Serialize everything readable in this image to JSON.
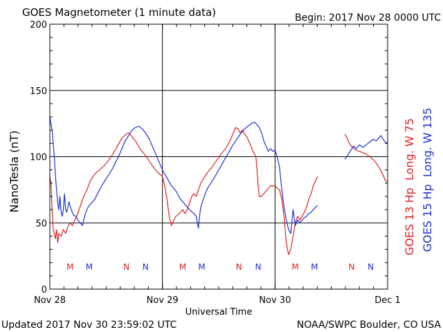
{
  "header": {
    "title": "GOES Magnetometer (1 minute data)",
    "begin": "Begin:  2017 Nov 28 0000 UTC"
  },
  "footer": {
    "updated": "Updated 2017 Nov 30 23:59:02 UTC",
    "credit": "NOAA/SWPC Boulder, CO USA"
  },
  "colors": {
    "goes13": "#e02020",
    "goes15": "#1a2fd6",
    "grid": "#000000"
  },
  "chart_data": {
    "type": "line",
    "ylabel": "NanoTesla (nT)",
    "xlabel": "Universal Time",
    "ylim": [
      0,
      200
    ],
    "yticks": [
      0,
      50,
      100,
      150,
      200
    ],
    "xlim_days": [
      0,
      3
    ],
    "xticks": [
      {
        "day": 0,
        "label": "Nov 28"
      },
      {
        "day": 1,
        "label": "Nov 29"
      },
      {
        "day": 2,
        "label": "Nov 30"
      },
      {
        "day": 3,
        "label": "Dec 1"
      }
    ],
    "grid": true,
    "legend_position": "right-vertical",
    "series": [
      {
        "name": "GOES 13 Hp  Long. W 75",
        "color": "#e02020",
        "segments": [
          [
            [
              0.0,
              85
            ],
            [
              0.01,
              80
            ],
            [
              0.02,
              60
            ],
            [
              0.03,
              45
            ],
            [
              0.04,
              42
            ],
            [
              0.05,
              38
            ],
            [
              0.06,
              45
            ],
            [
              0.07,
              35
            ],
            [
              0.08,
              42
            ],
            [
              0.1,
              40
            ],
            [
              0.12,
              45
            ],
            [
              0.14,
              42
            ],
            [
              0.16,
              47
            ],
            [
              0.18,
              50
            ],
            [
              0.2,
              48
            ],
            [
              0.22,
              52
            ],
            [
              0.24,
              55
            ],
            [
              0.26,
              60
            ],
            [
              0.28,
              65
            ],
            [
              0.3,
              70
            ],
            [
              0.33,
              75
            ],
            [
              0.36,
              82
            ],
            [
              0.4,
              87
            ],
            [
              0.44,
              90
            ],
            [
              0.48,
              93
            ],
            [
              0.52,
              97
            ],
            [
              0.56,
              102
            ],
            [
              0.6,
              108
            ],
            [
              0.64,
              114
            ],
            [
              0.68,
              117
            ],
            [
              0.7,
              118
            ],
            [
              0.72,
              116
            ],
            [
              0.74,
              114
            ],
            [
              0.76,
              112
            ],
            [
              0.78,
              109
            ],
            [
              0.8,
              106
            ],
            [
              0.84,
              102
            ],
            [
              0.88,
              97
            ],
            [
              0.92,
              92
            ],
            [
              0.96,
              88
            ],
            [
              1.0,
              85
            ],
            [
              1.02,
              78
            ],
            [
              1.04,
              68
            ],
            [
              1.06,
              55
            ],
            [
              1.08,
              48
            ],
            [
              1.1,
              52
            ],
            [
              1.12,
              55
            ],
            [
              1.15,
              57
            ],
            [
              1.18,
              60
            ],
            [
              1.2,
              57
            ],
            [
              1.22,
              60
            ],
            [
              1.24,
              65
            ],
            [
              1.26,
              70
            ],
            [
              1.28,
              72
            ],
            [
              1.3,
              70
            ],
            [
              1.32,
              75
            ],
            [
              1.34,
              80
            ],
            [
              1.37,
              84
            ],
            [
              1.4,
              88
            ],
            [
              1.44,
              92
            ],
            [
              1.48,
              97
            ],
            [
              1.52,
              102
            ],
            [
              1.56,
              106
            ],
            [
              1.6,
              112
            ],
            [
              1.63,
              118
            ],
            [
              1.65,
              122
            ],
            [
              1.67,
              121
            ],
            [
              1.69,
              118
            ],
            [
              1.71,
              120
            ],
            [
              1.73,
              117
            ],
            [
              1.75,
              115
            ],
            [
              1.77,
              111
            ],
            [
              1.79,
              107
            ],
            [
              1.81,
              103
            ],
            [
              1.83,
              100
            ],
            [
              1.84,
              90
            ],
            [
              1.85,
              78
            ],
            [
              1.86,
              70
            ],
            [
              1.88,
              70
            ],
            [
              1.9,
              72
            ],
            [
              1.93,
              75
            ],
            [
              1.96,
              78
            ],
            [
              2.0,
              78
            ],
            [
              2.02,
              76
            ],
            [
              2.04,
              75
            ],
            [
              2.06,
              68
            ],
            [
              2.08,
              55
            ],
            [
              2.1,
              35
            ],
            [
              2.12,
              26
            ],
            [
              2.14,
              30
            ],
            [
              2.16,
              40
            ],
            [
              2.18,
              50
            ],
            [
              2.2,
              55
            ],
            [
              2.22,
              52
            ],
            [
              2.24,
              55
            ],
            [
              2.26,
              58
            ],
            [
              2.28,
              62
            ],
            [
              2.3,
              68
            ],
            [
              2.32,
              72
            ],
            [
              2.34,
              78
            ],
            [
              2.36,
              82
            ],
            [
              2.38,
              85
            ]
          ],
          [
            [
              2.62,
              117
            ],
            [
              2.64,
              114
            ],
            [
              2.66,
              110
            ],
            [
              2.68,
              108
            ],
            [
              2.7,
              106
            ],
            [
              2.72,
              105
            ],
            [
              2.75,
              104
            ],
            [
              2.78,
              103
            ],
            [
              2.81,
              102
            ],
            [
              2.84,
              100
            ],
            [
              2.87,
              98
            ],
            [
              2.9,
              95
            ],
            [
              2.93,
              91
            ],
            [
              2.96,
              86
            ],
            [
              2.98,
              82
            ],
            [
              3.0,
              81
            ]
          ]
        ]
      },
      {
        "name": "GOES 15 Hp  Long. W 135",
        "color": "#1a2fd6",
        "segments": [
          [
            [
              0.0,
              130
            ],
            [
              0.01,
              125
            ],
            [
              0.02,
              120
            ],
            [
              0.03,
              110
            ],
            [
              0.04,
              100
            ],
            [
              0.05,
              85
            ],
            [
              0.06,
              75
            ],
            [
              0.07,
              65
            ],
            [
              0.08,
              60
            ],
            [
              0.09,
              70
            ],
            [
              0.1,
              58
            ],
            [
              0.11,
              55
            ],
            [
              0.12,
              60
            ],
            [
              0.13,
              72
            ],
            [
              0.14,
              60
            ],
            [
              0.15,
              58
            ],
            [
              0.17,
              66
            ],
            [
              0.19,
              60
            ],
            [
              0.21,
              56
            ],
            [
              0.23,
              55
            ],
            [
              0.25,
              52
            ],
            [
              0.27,
              50
            ],
            [
              0.29,
              48
            ],
            [
              0.3,
              52
            ],
            [
              0.32,
              58
            ],
            [
              0.34,
              62
            ],
            [
              0.36,
              64
            ],
            [
              0.38,
              66
            ],
            [
              0.4,
              68
            ],
            [
              0.43,
              73
            ],
            [
              0.46,
              78
            ],
            [
              0.49,
              82
            ],
            [
              0.52,
              86
            ],
            [
              0.55,
              90
            ],
            [
              0.58,
              95
            ],
            [
              0.61,
              100
            ],
            [
              0.64,
              106
            ],
            [
              0.67,
              112
            ],
            [
              0.7,
              116
            ],
            [
              0.73,
              120
            ],
            [
              0.76,
              122
            ],
            [
              0.79,
              123
            ],
            [
              0.82,
              121
            ],
            [
              0.85,
              118
            ],
            [
              0.88,
              114
            ],
            [
              0.91,
              108
            ],
            [
              0.94,
              102
            ],
            [
              0.97,
              96
            ],
            [
              1.0,
              90
            ],
            [
              1.04,
              84
            ],
            [
              1.08,
              78
            ],
            [
              1.12,
              74
            ],
            [
              1.16,
              68
            ],
            [
              1.2,
              64
            ],
            [
              1.24,
              60
            ],
            [
              1.28,
              57
            ],
            [
              1.3,
              55
            ],
            [
              1.31,
              50
            ],
            [
              1.32,
              46
            ],
            [
              1.33,
              55
            ],
            [
              1.34,
              62
            ],
            [
              1.36,
              67
            ],
            [
              1.38,
              72
            ],
            [
              1.4,
              76
            ],
            [
              1.43,
              80
            ],
            [
              1.46,
              84
            ],
            [
              1.5,
              90
            ],
            [
              1.54,
              96
            ],
            [
              1.58,
              102
            ],
            [
              1.62,
              108
            ],
            [
              1.66,
              113
            ],
            [
              1.7,
              118
            ],
            [
              1.73,
              121
            ],
            [
              1.76,
              123
            ],
            [
              1.79,
              125
            ],
            [
              1.82,
              126
            ],
            [
              1.84,
              124
            ],
            [
              1.86,
              122
            ],
            [
              1.88,
              118
            ],
            [
              1.9,
              112
            ],
            [
              1.92,
              108
            ],
            [
              1.94,
              104
            ],
            [
              1.96,
              106
            ],
            [
              1.98,
              104
            ],
            [
              2.0,
              105
            ],
            [
              2.02,
              100
            ],
            [
              2.04,
              92
            ],
            [
              2.06,
              75
            ],
            [
              2.08,
              62
            ],
            [
              2.1,
              52
            ],
            [
              2.12,
              45
            ],
            [
              2.14,
              42
            ],
            [
              2.16,
              60
            ],
            [
              2.18,
              48
            ],
            [
              2.2,
              52
            ],
            [
              2.22,
              50
            ],
            [
              2.24,
              52
            ],
            [
              2.26,
              54
            ],
            [
              2.28,
              55
            ],
            [
              2.3,
              57
            ],
            [
              2.32,
              58
            ],
            [
              2.34,
              60
            ],
            [
              2.36,
              62
            ],
            [
              2.38,
              63
            ]
          ],
          [
            [
              2.62,
              98
            ],
            [
              2.64,
              100
            ],
            [
              2.66,
              103
            ],
            [
              2.68,
              106
            ],
            [
              2.7,
              108
            ],
            [
              2.72,
              106
            ],
            [
              2.75,
              109
            ],
            [
              2.78,
              107
            ],
            [
              2.81,
              109
            ],
            [
              2.84,
              111
            ],
            [
              2.87,
              113
            ],
            [
              2.9,
              112
            ],
            [
              2.92,
              114
            ],
            [
              2.94,
              116
            ],
            [
              2.96,
              113
            ],
            [
              2.98,
              111
            ],
            [
              3.0,
              110
            ]
          ]
        ]
      }
    ],
    "annotations": [
      {
        "text": "M",
        "day": 0.18,
        "series": "GOES 13 Hp  Long. W 75"
      },
      {
        "text": "M",
        "day": 0.35,
        "series": "GOES 15 Hp  Long. W 135"
      },
      {
        "text": "N",
        "day": 0.68,
        "series": "GOES 13 Hp  Long. W 75"
      },
      {
        "text": "N",
        "day": 0.85,
        "series": "GOES 15 Hp  Long. W 135"
      },
      {
        "text": "M",
        "day": 1.18,
        "series": "GOES 13 Hp  Long. W 75"
      },
      {
        "text": "M",
        "day": 1.35,
        "series": "GOES 15 Hp  Long. W 135"
      },
      {
        "text": "N",
        "day": 1.68,
        "series": "GOES 13 Hp  Long. W 75"
      },
      {
        "text": "N",
        "day": 1.85,
        "series": "GOES 15 Hp  Long. W 135"
      },
      {
        "text": "M",
        "day": 2.18,
        "series": "GOES 13 Hp  Long. W 75"
      },
      {
        "text": "M",
        "day": 2.35,
        "series": "GOES 15 Hp  Long. W 135"
      },
      {
        "text": "N",
        "day": 2.68,
        "series": "GOES 13 Hp  Long. W 75"
      },
      {
        "text": "N",
        "day": 2.85,
        "series": "GOES 15 Hp  Long. W 135"
      }
    ]
  }
}
